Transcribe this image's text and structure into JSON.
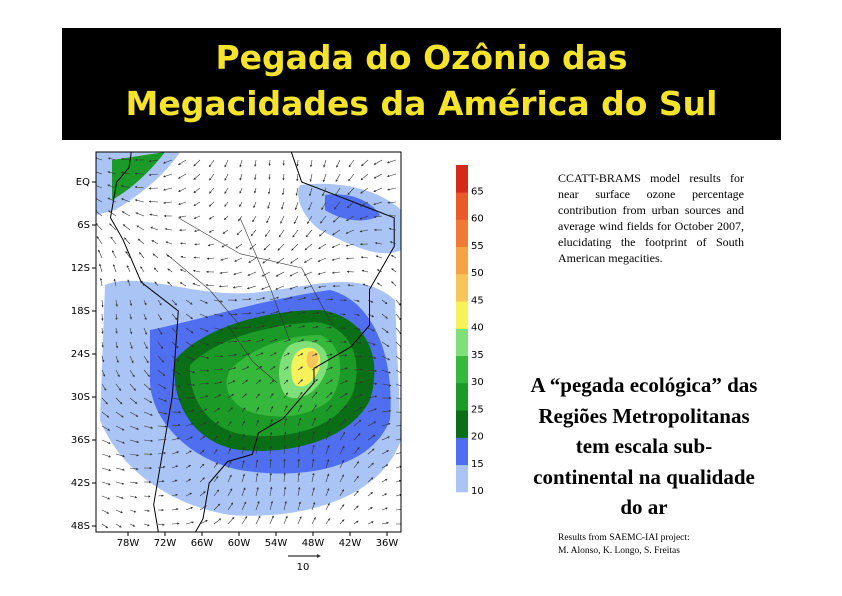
{
  "header": {
    "title_lines": [
      "Pegada do Ozônio das",
      "Megacidades da América do Sul"
    ]
  },
  "map": {
    "y_labels": [
      "EQ",
      "6S",
      "12S",
      "18S",
      "24S",
      "30S",
      "36S",
      "42S",
      "48S"
    ],
    "x_labels": [
      "78W",
      "72W",
      "66W",
      "60W",
      "54W",
      "48W",
      "42W",
      "36W"
    ],
    "scale_label": "10"
  },
  "colorbar": {
    "ticks": [
      10,
      15,
      20,
      25,
      30,
      35,
      40,
      45,
      50,
      55,
      60,
      65
    ],
    "colors": [
      "#a9c4f5",
      "#4f6ef0",
      "#0a6e16",
      "#1c9a28",
      "#35b83c",
      "#7fe07a",
      "#f6f25a",
      "#f7c65a",
      "#f4a445",
      "#f07a35",
      "#e85a28",
      "#d42a1a"
    ]
  },
  "description": "CCATT-BRAMS model results for near surface ozone percentage contribution from urban sources and average wind fields for October 2007, elucidating the footprint of South American megacities.",
  "headline": [
    "A “pegada ecológica” das",
    "Regiões Metropolitanas",
    "tem escala sub-",
    "continental na qualidade",
    "do ar"
  ],
  "credits": [
    "Results from SAEMC-IAI project:",
    "M. Alonso, K. Longo, S. Freitas"
  ]
}
